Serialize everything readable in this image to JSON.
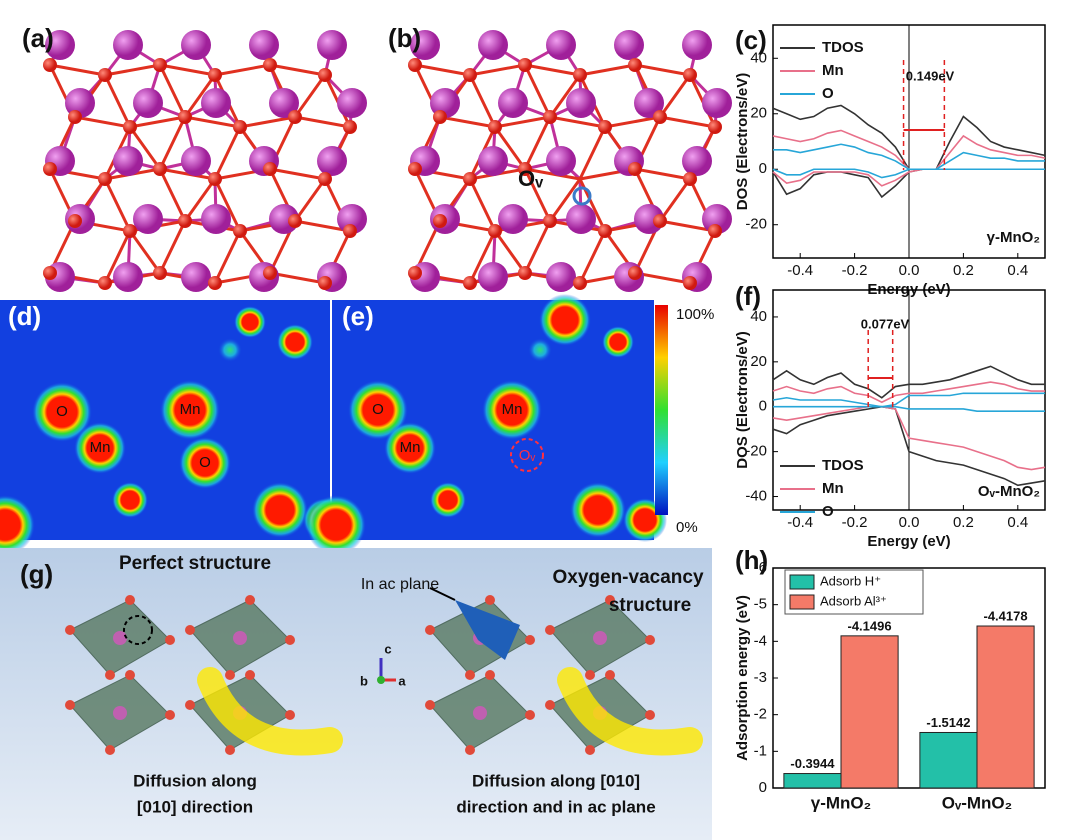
{
  "panels": {
    "a": {
      "label": "(a)"
    },
    "b": {
      "label": "(b)",
      "vacancy": "Oᵥ"
    },
    "d": {
      "label": "(d)",
      "atoms": [
        "O",
        "Mn",
        "Mn",
        "O"
      ]
    },
    "e": {
      "label": "(e)",
      "atoms": [
        "O",
        "Mn",
        "Mn",
        "Oᵥ"
      ]
    },
    "colorbar": {
      "max_label": "100%",
      "min_label": "0%"
    },
    "g": {
      "label": "(g)",
      "left_title": "Perfect structure",
      "right_title": [
        "Oxygen-vacancy",
        "structure"
      ],
      "arrow_label": "In ac plane",
      "axes": [
        "c",
        "b",
        "a"
      ],
      "left_caption": [
        "Diffusion along",
        "[010] direction"
      ],
      "right_caption": [
        "Diffusion along [010]",
        "direction and in ac plane"
      ]
    }
  },
  "chart_data": [
    {
      "type": "line",
      "panel_label": "(c)",
      "xlabel": "Energy (eV)",
      "ylabel": "DOS (Electrons/eV)",
      "annotation": "0.149eV",
      "sample_label": "γ-MnO₂",
      "legend": "upper left",
      "x": [
        -0.5,
        -0.45,
        -0.4,
        -0.35,
        -0.3,
        -0.25,
        -0.2,
        -0.15,
        -0.1,
        -0.05,
        0,
        0.05,
        0.1,
        0.15,
        0.2,
        0.25,
        0.3,
        0.35,
        0.4,
        0.45,
        0.5
      ],
      "xlim": [
        -0.5,
        0.5
      ],
      "xticks": [
        -0.4,
        -0.2,
        {
          "value": 0,
          "label": "0.0"
        },
        0.2,
        0.4
      ],
      "ylim": [
        -32,
        52
      ],
      "yticks": [
        -20,
        0,
        20,
        40
      ],
      "series": [
        {
          "name": "TDOS",
          "color": "#333333",
          "values": [
            22,
            20,
            18,
            19,
            22,
            23,
            20,
            16,
            13,
            8,
            0,
            0,
            0,
            10,
            19,
            15,
            10,
            8,
            7,
            6,
            5
          ],
          "values_down": [
            -1,
            -9,
            -7,
            -2,
            -1,
            -1,
            -2,
            -3,
            -10,
            -6,
            -1,
            0,
            0,
            0,
            0,
            0,
            0,
            0,
            0,
            0,
            0
          ]
        },
        {
          "name": "Mn",
          "color": "#e8708a",
          "values": [
            12,
            11,
            10,
            11,
            13,
            14,
            12,
            10,
            8,
            5,
            0,
            0,
            0,
            6,
            12,
            9,
            7,
            6,
            5,
            5,
            4
          ],
          "values_down": [
            -1,
            -5,
            -4,
            -1,
            -1,
            -1,
            -1,
            -2,
            -6,
            -4,
            -1,
            0,
            0,
            0,
            0,
            0,
            0,
            0,
            0,
            0,
            0
          ]
        },
        {
          "name": "O",
          "color": "#27a6d8",
          "values": [
            7,
            7,
            6,
            7,
            8,
            9,
            8,
            6,
            5,
            3,
            0,
            0,
            0,
            3,
            6,
            5,
            4,
            4,
            3,
            3,
            3
          ],
          "values_down": [
            0,
            -2,
            -2,
            0,
            0,
            0,
            0,
            -1,
            -3,
            -2,
            0,
            0,
            0,
            0,
            0,
            0,
            0,
            0,
            0,
            0,
            0
          ]
        }
      ]
    },
    {
      "type": "line",
      "panel_label": "(f)",
      "xlabel": "Energy (eV)",
      "ylabel": "DOS (Electrons/eV)",
      "annotation": "0.077eV",
      "sample_label": "Oᵥ-MnO₂",
      "legend": "lower left",
      "x": [
        -0.5,
        -0.45,
        -0.4,
        -0.35,
        -0.3,
        -0.25,
        -0.2,
        -0.15,
        -0.1,
        -0.05,
        0,
        0.05,
        0.1,
        0.15,
        0.2,
        0.25,
        0.3,
        0.35,
        0.4,
        0.45,
        0.5
      ],
      "xlim": [
        -0.5,
        0.5
      ],
      "xticks": [
        -0.4,
        -0.2,
        {
          "value": 0,
          "label": "0.0"
        },
        0.2,
        0.4
      ],
      "ylim": [
        -46,
        52
      ],
      "yticks": [
        -40,
        -20,
        0,
        20,
        40
      ],
      "series": [
        {
          "name": "TDOS",
          "color": "#333333",
          "values": [
            12,
            16,
            12,
            10,
            13,
            15,
            10,
            8,
            4,
            9,
            10,
            10,
            11,
            12,
            14,
            16,
            18,
            15,
            12,
            10,
            10
          ],
          "values_down": [
            -10,
            -12,
            -8,
            -6,
            -4,
            -3,
            -2,
            -1,
            0,
            -1,
            -20,
            -22,
            -24,
            -25,
            -26,
            -28,
            -30,
            -32,
            -35,
            -34,
            -33
          ]
        },
        {
          "name": "Mn",
          "color": "#e8708a",
          "values": [
            7,
            9,
            7,
            6,
            8,
            9,
            6,
            5,
            2,
            5,
            6,
            6,
            7,
            8,
            9,
            10,
            11,
            10,
            8,
            7,
            7
          ],
          "values_down": [
            -5,
            -6,
            -5,
            -4,
            -3,
            -2,
            -1,
            0,
            0,
            -1,
            -14,
            -15,
            -16,
            -17,
            -18,
            -20,
            -22,
            -24,
            -27,
            -28,
            -27
          ]
        },
        {
          "name": "O",
          "color": "#27a6d8",
          "values": [
            3,
            4,
            3,
            3,
            3,
            3,
            2,
            1,
            0,
            1,
            5,
            5,
            5,
            5,
            6,
            6,
            6,
            6,
            6,
            6,
            6
          ],
          "values_down": [
            0,
            0,
            0,
            0,
            0,
            0,
            0,
            0,
            0,
            0,
            -1,
            -1,
            -1,
            -1,
            -1,
            -2,
            -2,
            -2,
            -2,
            -2,
            -2
          ]
        }
      ]
    },
    {
      "type": "bar",
      "panel_label": "(h)",
      "ylabel": "Adsorption energy (eV)",
      "legend": "upper left",
      "categories": [
        "γ-MnO₂",
        "Oᵥ-MnO₂"
      ],
      "ylim": [
        0,
        -6
      ],
      "yticks": [
        0,
        -1,
        -2,
        -3,
        -4,
        -5,
        -6
      ],
      "series": [
        {
          "name": "Adsorb H⁺",
          "color": "#23c0a8",
          "values": [
            -0.3944,
            -1.5142
          ]
        },
        {
          "name": "Adsorb Al³⁺",
          "color": "#f47a68",
          "values": [
            -4.1496,
            -4.4178
          ]
        }
      ]
    }
  ]
}
